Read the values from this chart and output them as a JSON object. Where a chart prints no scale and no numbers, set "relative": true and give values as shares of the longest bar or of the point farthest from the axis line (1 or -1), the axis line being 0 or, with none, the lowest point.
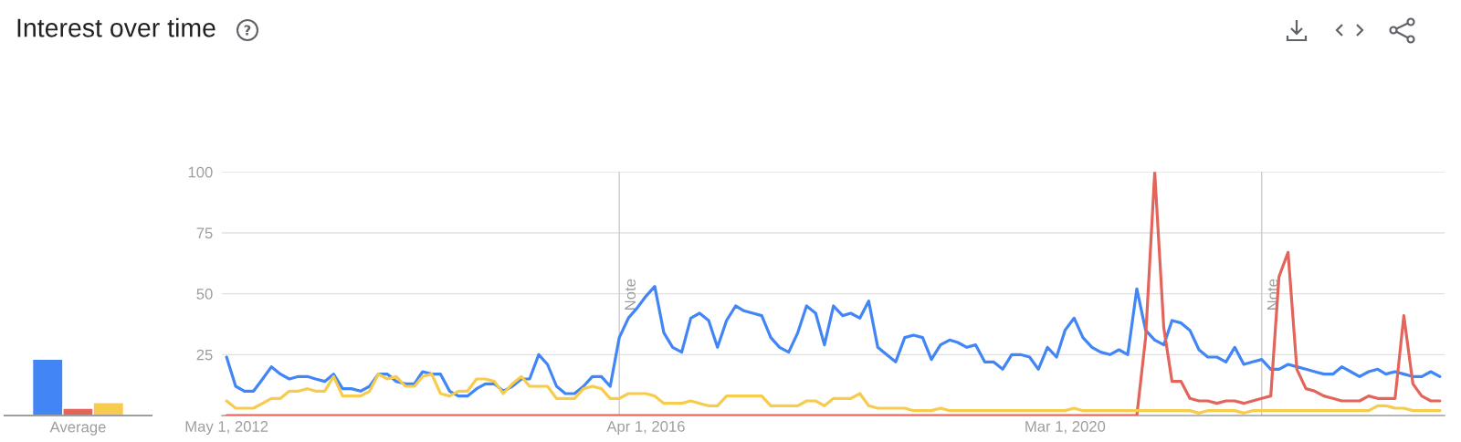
{
  "chart_data": [
    {
      "type": "bar",
      "categories": [
        null,
        null,
        null
      ],
      "values": [
        1,
        0.13,
        0.23
      ],
      "colors": [
        "#4285f4",
        "#e2645a",
        "#f7cb4d"
      ],
      "relative": true,
      "xlabel": "Average"
    },
    {
      "type": "line",
      "title": "Interest over time",
      "x": [
        "2012-05",
        "2012-06",
        "2012-07",
        "2012-08",
        "2012-09",
        "2012-10",
        "2012-11",
        "2012-12",
        "2013-01",
        "2013-02",
        "2013-03",
        "2013-04",
        "2013-05",
        "2013-06",
        "2013-07",
        "2013-08",
        "2013-09",
        "2013-10",
        "2013-11",
        "2013-12",
        "2014-01",
        "2014-02",
        "2014-03",
        "2014-04",
        "2014-05",
        "2014-06",
        "2014-07",
        "2014-08",
        "2014-09",
        "2014-10",
        "2014-11",
        "2014-12",
        "2015-01",
        "2015-02",
        "2015-03",
        "2015-04",
        "2015-05",
        "2015-06",
        "2015-07",
        "2015-08",
        "2015-09",
        "2015-10",
        "2015-11",
        "2015-12",
        "2016-01",
        "2016-02",
        "2016-03",
        "2016-04",
        "2016-05",
        "2016-06",
        "2016-07",
        "2016-08",
        "2016-09",
        "2016-10",
        "2016-11",
        "2016-12",
        "2017-01",
        "2017-02",
        "2017-03",
        "2017-04",
        "2017-05",
        "2017-06",
        "2017-07",
        "2017-08",
        "2017-09",
        "2017-10",
        "2017-11",
        "2017-12",
        "2018-01",
        "2018-02",
        "2018-03",
        "2018-04",
        "2018-05",
        "2018-06",
        "2018-07",
        "2018-08",
        "2018-09",
        "2018-10",
        "2018-11",
        "2018-12",
        "2019-01",
        "2019-02",
        "2019-03",
        "2019-04",
        "2019-05",
        "2019-06",
        "2019-07",
        "2019-08",
        "2019-09",
        "2019-10",
        "2019-11",
        "2019-12",
        "2020-01",
        "2020-02",
        "2020-03",
        "2020-04",
        "2020-05",
        "2020-06",
        "2020-07",
        "2020-08",
        "2020-09",
        "2020-10",
        "2020-11",
        "2020-12",
        "2021-01",
        "2021-02",
        "2021-03",
        "2021-04",
        "2021-05",
        "2021-06",
        "2021-07",
        "2021-08",
        "2021-09",
        "2021-10",
        "2021-11",
        "2021-12",
        "2022-01",
        "2022-02",
        "2022-03",
        "2022-04",
        "2022-05",
        "2022-06",
        "2022-07",
        "2022-08",
        "2022-09",
        "2022-10",
        "2022-11",
        "2022-12",
        "2023-01",
        "2023-02",
        "2023-03",
        "2023-04",
        "2023-05",
        "2023-06",
        "2023-07",
        "2023-08",
        "2023-09"
      ],
      "series": [
        {
          "color": "#4285f4",
          "values": [
            24,
            12,
            10,
            10,
            15,
            20,
            17,
            15,
            16,
            16,
            15,
            14,
            17,
            11,
            11,
            10,
            12,
            17,
            17,
            14,
            13,
            13,
            18,
            17,
            17,
            10,
            8,
            8,
            11,
            13,
            13,
            10,
            12,
            15,
            15,
            25,
            21,
            12,
            9,
            9,
            12,
            16,
            16,
            12,
            32,
            40,
            44,
            49,
            53,
            34,
            28,
            26,
            40,
            42,
            39,
            28,
            39,
            45,
            43,
            42,
            41,
            32,
            28,
            26,
            34,
            45,
            42,
            29,
            45,
            41,
            42,
            40,
            47,
            28,
            25,
            22,
            32,
            33,
            32,
            23,
            29,
            31,
            30,
            28,
            29,
            22,
            22,
            19,
            25,
            25,
            24,
            19,
            28,
            24,
            35,
            40,
            32,
            28,
            26,
            25,
            27,
            25,
            52,
            35,
            31,
            29,
            39,
            38,
            35,
            27,
            24,
            24,
            22,
            28,
            21,
            22,
            23,
            19,
            19,
            21,
            20,
            19,
            18,
            17,
            17,
            20,
            18,
            16,
            18,
            19,
            17,
            18,
            17,
            16,
            16,
            18,
            16
          ]
        },
        {
          "color": "#e2645a",
          "values": [
            0,
            0,
            0,
            0,
            0,
            0,
            0,
            0,
            0,
            0,
            0,
            0,
            0,
            0,
            0,
            0,
            0,
            0,
            0,
            0,
            0,
            0,
            0,
            0,
            0,
            0,
            0,
            0,
            0,
            0,
            0,
            0,
            0,
            0,
            0,
            0,
            0,
            0,
            0,
            0,
            0,
            0,
            0,
            0,
            0,
            0,
            0,
            0,
            0,
            0,
            0,
            0,
            0,
            0,
            0,
            0,
            0,
            0,
            0,
            0,
            0,
            0,
            0,
            0,
            0,
            0,
            0,
            0,
            0,
            0,
            0,
            0,
            0,
            0,
            0,
            0,
            0,
            0,
            0,
            0,
            0,
            0,
            0,
            0,
            0,
            0,
            0,
            0,
            0,
            0,
            0,
            0,
            0,
            0,
            0,
            0,
            0,
            0,
            0,
            0,
            0,
            0,
            0,
            32,
            100,
            36,
            14,
            14,
            7,
            6,
            6,
            5,
            6,
            6,
            5,
            6,
            7,
            8,
            57,
            67,
            19,
            11,
            10,
            8,
            7,
            6,
            6,
            6,
            8,
            7,
            7,
            7,
            41,
            13,
            8,
            6,
            6
          ]
        },
        {
          "color": "#f7cb4d",
          "values": [
            6,
            3,
            3,
            3,
            5,
            7,
            7,
            10,
            10,
            11,
            10,
            10,
            16,
            8,
            8,
            8,
            10,
            17,
            15,
            16,
            12,
            12,
            16,
            17,
            9,
            8,
            10,
            10,
            15,
            15,
            14,
            9,
            13,
            16,
            12,
            12,
            12,
            7,
            7,
            7,
            11,
            12,
            11,
            7,
            7,
            9,
            9,
            9,
            8,
            5,
            5,
            5,
            6,
            5,
            4,
            4,
            8,
            8,
            8,
            8,
            8,
            4,
            4,
            4,
            4,
            6,
            6,
            4,
            7,
            7,
            7,
            9,
            4,
            3,
            3,
            3,
            3,
            2,
            2,
            2,
            3,
            2,
            2,
            2,
            2,
            2,
            2,
            2,
            2,
            2,
            2,
            2,
            2,
            2,
            2,
            3,
            2,
            2,
            2,
            2,
            2,
            2,
            2,
            2,
            2,
            2,
            2,
            2,
            2,
            1,
            2,
            2,
            2,
            2,
            1,
            2,
            2,
            2,
            2,
            2,
            2,
            2,
            2,
            2,
            2,
            2,
            2,
            2,
            2,
            4,
            4,
            3,
            3,
            2,
            2,
            2,
            2
          ]
        }
      ],
      "xlim": [
        "2012-04-15",
        "2023-09-17"
      ],
      "xticks": [
        {
          "value": "2012-05-01",
          "label": "May 1, 2012"
        },
        {
          "value": "2016-04-01",
          "label": "Apr 1, 2016"
        },
        {
          "value": "2020-03-01",
          "label": "Mar 1, 2020"
        }
      ],
      "ylim": [
        0,
        100
      ],
      "yticks": [
        25,
        50,
        75,
        100
      ],
      "grid": "y",
      "line_style": "solid",
      "ref_lines": [
        {
          "axis": "x",
          "value": "2016-01-01",
          "label": "Note",
          "color": "#cccccc"
        },
        {
          "axis": "x",
          "value": "2022-01-01",
          "label": "Note",
          "color": "#cccccc"
        }
      ]
    }
  ]
}
